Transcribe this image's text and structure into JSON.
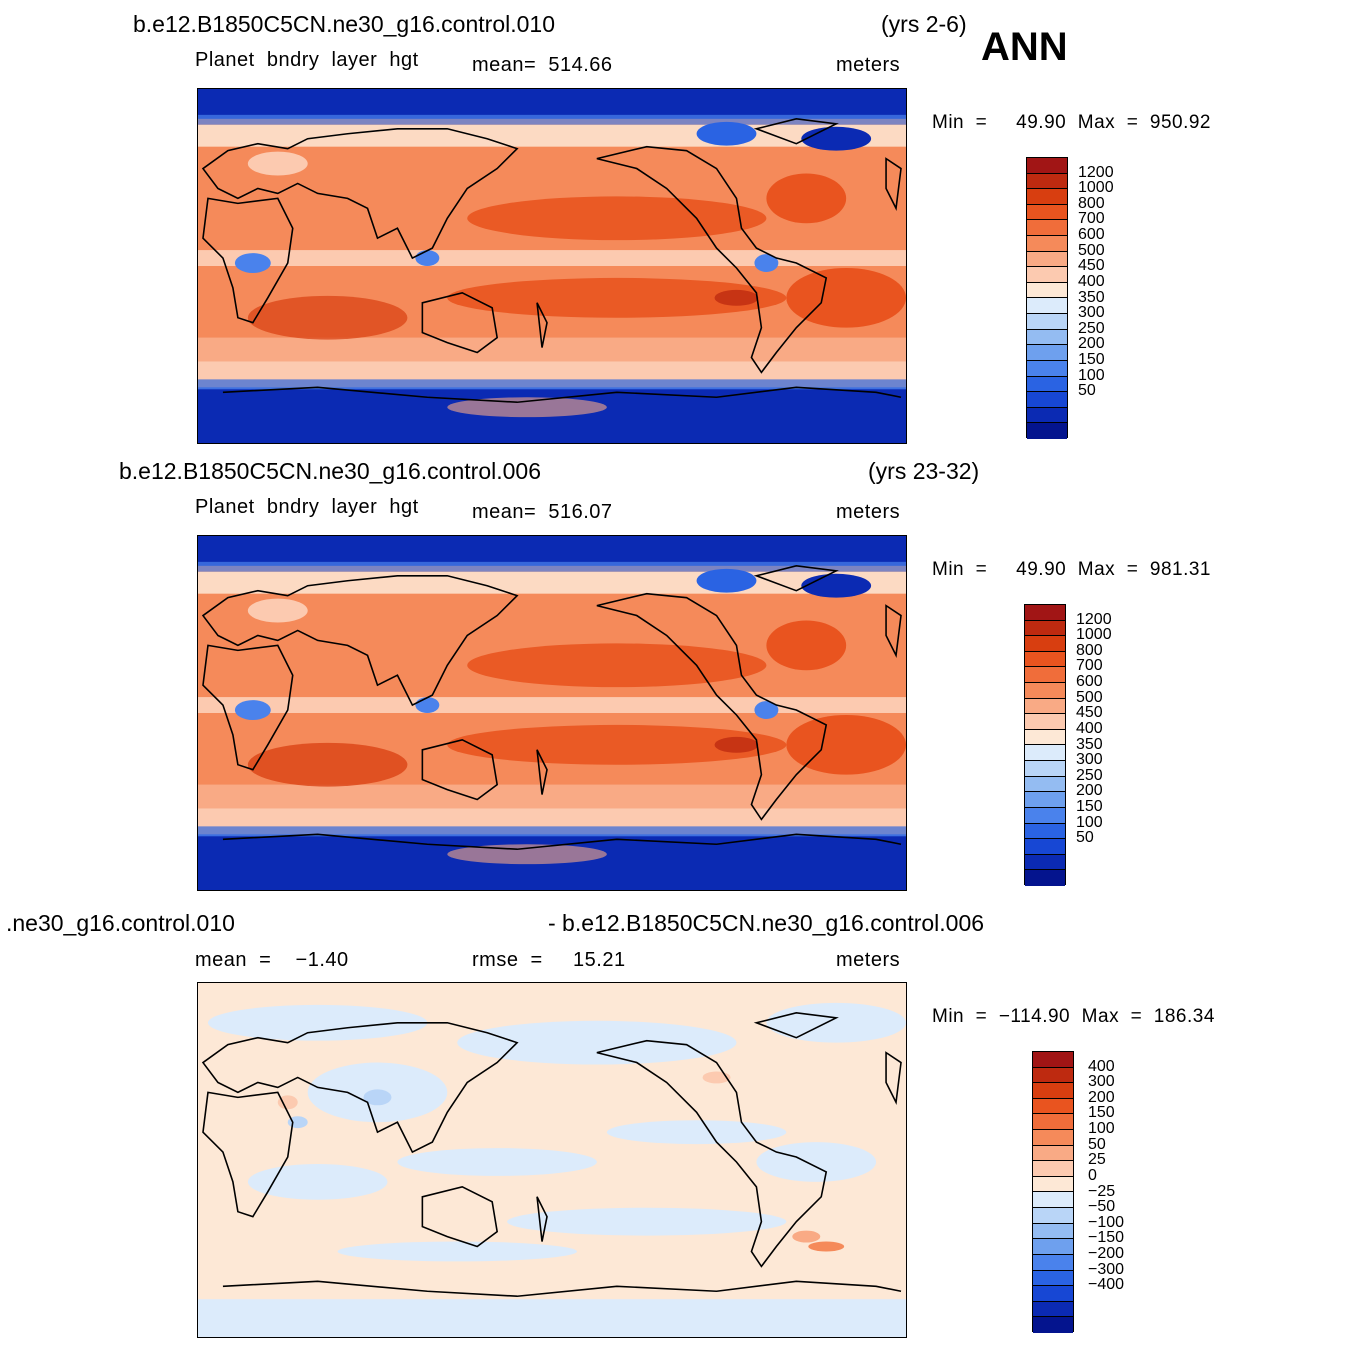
{
  "season": "ANN",
  "panels": [
    {
      "case_left": "b.e12.B1850C5CN.ne30_g16.control.010",
      "case_right": "(yrs 2-6)",
      "var_label": "Planet  bndry  layer  hgt",
      "stat_label": "mean=  514.66",
      "units": "meters",
      "minmax": "Min  =     49.90  Max  =  950.92",
      "colorbar": {
        "labels": [
          "1200",
          "1000",
          "800",
          "700",
          "600",
          "500",
          "450",
          "400",
          "350",
          "300",
          "250",
          "200",
          "150",
          "100",
          "50"
        ],
        "colors": [
          "#a11515",
          "#be2a10",
          "#d83e10",
          "#e9541f",
          "#f06d3a",
          "#f58a5a",
          "#f9aa85",
          "#fccab0",
          "#fde8d6",
          "#dcebfb",
          "#b9d5f7",
          "#94bcf2",
          "#6ea0ee",
          "#4a82ec",
          "#2a63e3",
          "#1747d4",
          "#0b2ab3",
          "#04148e"
        ]
      }
    },
    {
      "case_left": "b.e12.B1850C5CN.ne30_g16.control.006",
      "case_right": "(yrs 23-32)",
      "var_label": "Planet  bndry  layer  hgt",
      "stat_label": "mean=  516.07",
      "units": "meters",
      "minmax": "Min  =     49.90  Max  =  981.31",
      "colorbar": {
        "labels": [
          "1200",
          "1000",
          "800",
          "700",
          "600",
          "500",
          "450",
          "400",
          "350",
          "300",
          "250",
          "200",
          "150",
          "100",
          "50"
        ],
        "colors": [
          "#a11515",
          "#be2a10",
          "#d83e10",
          "#e9541f",
          "#f06d3a",
          "#f58a5a",
          "#f9aa85",
          "#fccab0",
          "#fde8d6",
          "#dcebfb",
          "#b9d5f7",
          "#94bcf2",
          "#6ea0ee",
          "#4a82ec",
          "#2a63e3",
          "#1747d4",
          "#0b2ab3",
          "#04148e"
        ]
      }
    },
    {
      "case_left": ".ne30_g16.control.010",
      "case_right": "- b.e12.B1850C5CN.ne30_g16.control.006",
      "var_label": "mean  =    −1.40",
      "stat_label": "rmse  =     15.21",
      "units": "meters",
      "minmax": "Min  =  −114.90  Max  =  186.34",
      "colorbar": {
        "labels": [
          "400",
          "300",
          "200",
          "150",
          "100",
          "50",
          "25",
          "0",
          "−25",
          "−50",
          "−100",
          "−150",
          "−200",
          "−300",
          "−400"
        ],
        "colors": [
          "#a11515",
          "#be2a10",
          "#d83e10",
          "#e9541f",
          "#f06d3a",
          "#f58a5a",
          "#f9aa85",
          "#fccab0",
          "#fde8d6",
          "#dcebfb",
          "#b9d5f7",
          "#94bcf2",
          "#6ea0ee",
          "#4a82ec",
          "#2a63e3",
          "#1747d4",
          "#0b2ab3",
          "#04148e"
        ]
      }
    }
  ]
}
